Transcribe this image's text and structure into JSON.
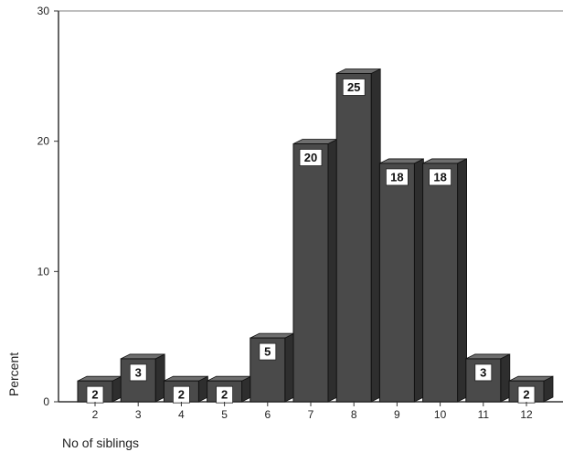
{
  "chart_data": {
    "type": "bar",
    "categories": [
      "2",
      "3",
      "4",
      "5",
      "6",
      "7",
      "8",
      "9",
      "10",
      "11",
      "12"
    ],
    "values": [
      2,
      3,
      2,
      2,
      5,
      20,
      25,
      18,
      18,
      3,
      2
    ],
    "data_labels": [
      "2",
      "3",
      "2",
      "2",
      "5",
      "20",
      "25",
      "18",
      "18",
      "3",
      "2"
    ],
    "plotted_values": [
      1.6,
      3.3,
      1.6,
      1.6,
      4.9,
      19.8,
      25.2,
      18.3,
      18.3,
      3.3,
      1.6
    ],
    "xlabel": "No of siblings",
    "ylabel": "Percent",
    "ylim": [
      0,
      30
    ],
    "yticks": [
      "0",
      "10",
      "20",
      "30"
    ],
    "grid": false,
    "legend": "none",
    "colors": {
      "bar_front": "#4a4a4a",
      "bar_top": "#6e6e6e",
      "bar_side": "#2e2e2e",
      "axis": "#333333"
    }
  }
}
